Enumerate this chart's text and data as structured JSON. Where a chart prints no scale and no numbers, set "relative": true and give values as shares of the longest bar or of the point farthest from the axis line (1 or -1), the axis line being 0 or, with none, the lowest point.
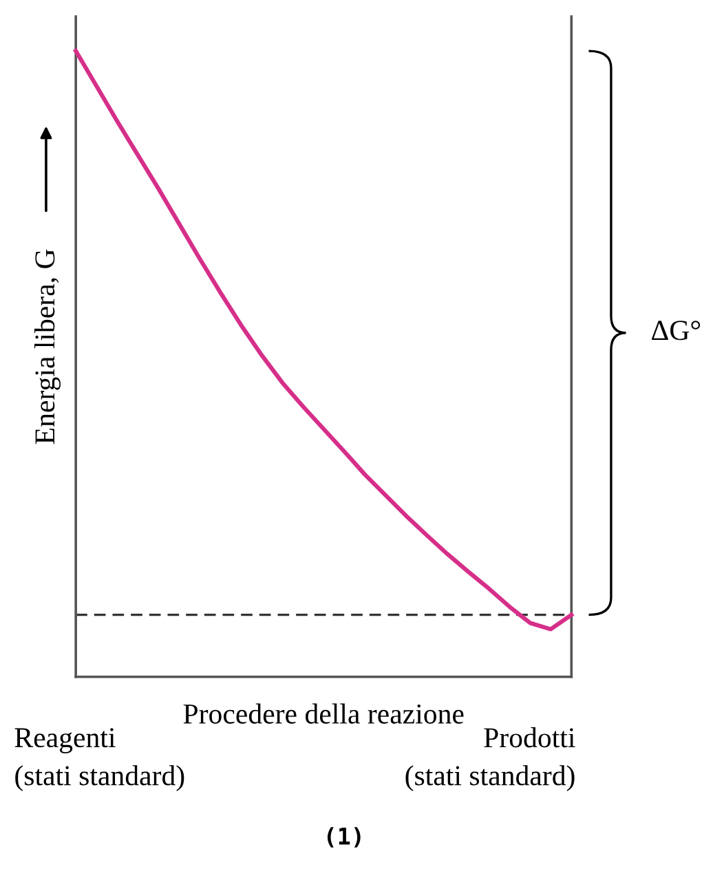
{
  "chart_data": {
    "type": "line",
    "relative": true,
    "xlabel": "Procedere della reazione",
    "ylabel": "Energia libera, G",
    "categories": [
      null,
      null,
      null,
      null,
      null,
      null,
      null,
      null,
      null,
      null,
      null,
      null,
      null,
      null,
      null,
      null,
      null,
      null,
      null,
      null,
      null,
      null,
      null,
      null,
      null
    ],
    "series": [
      {
        "color": "#d62f8a",
        "values": [
          1.0,
          0.944,
          0.888,
          0.834,
          0.78,
          0.724,
          0.668,
          0.614,
          0.562,
          0.514,
          0.47,
          0.432,
          0.396,
          0.36,
          0.323,
          0.29,
          0.257,
          0.226,
          0.196,
          0.168,
          0.141,
          0.112,
          0.086,
          0.076,
          0.099
        ]
      }
    ],
    "ref_lines": [
      {
        "axis": "y",
        "value": 0.099,
        "color": "#333333",
        "line_style": "dashed"
      }
    ],
    "annotations": [
      "Reagenti\n(stati standard)",
      "Prodotti\n(stati standard)",
      "ΔG°",
      "(1)"
    ],
    "tick_labels": false,
    "grid": false,
    "legend": false,
    "marker": "none",
    "line_style": "solid"
  }
}
